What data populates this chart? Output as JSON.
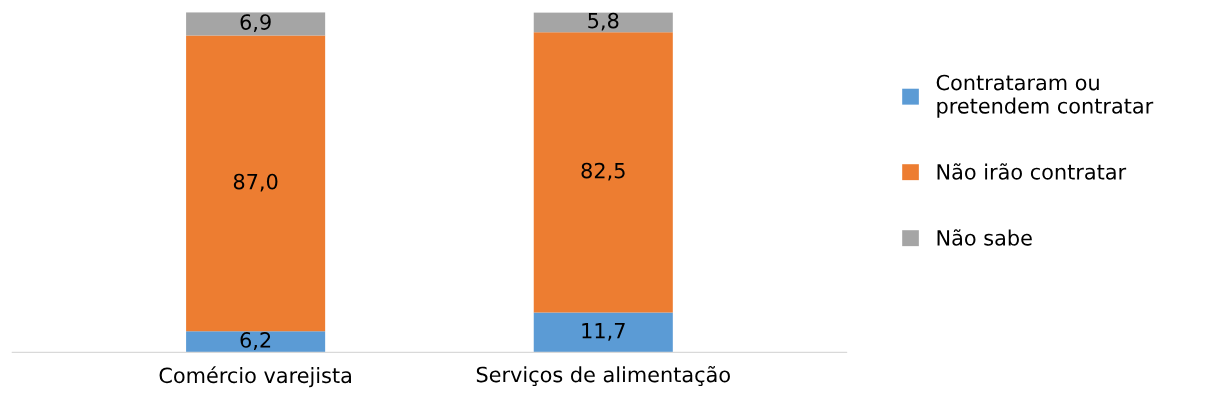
{
  "chart_data": {
    "type": "bar",
    "stacked": true,
    "categories": [
      "Comércio varejista",
      "Serviços de alimentação"
    ],
    "series": [
      {
        "name": "Contrataram ou\npretendem contratar",
        "color": "#5b9bd5",
        "values": [
          6.2,
          11.7
        ],
        "value_labels": [
          "6,2",
          "11,7"
        ]
      },
      {
        "name": "Não irão contratar",
        "color": "#ed7d31",
        "values": [
          87.0,
          82.5
        ],
        "value_labels": [
          "87,0",
          "82,5"
        ]
      },
      {
        "name": "Não sabe",
        "color": "#a5a5a5",
        "values": [
          6.9,
          5.8
        ],
        "value_labels": [
          "6,9",
          "5,8"
        ]
      }
    ],
    "legend": "right",
    "grid": false,
    "tick_labels": "x"
  }
}
